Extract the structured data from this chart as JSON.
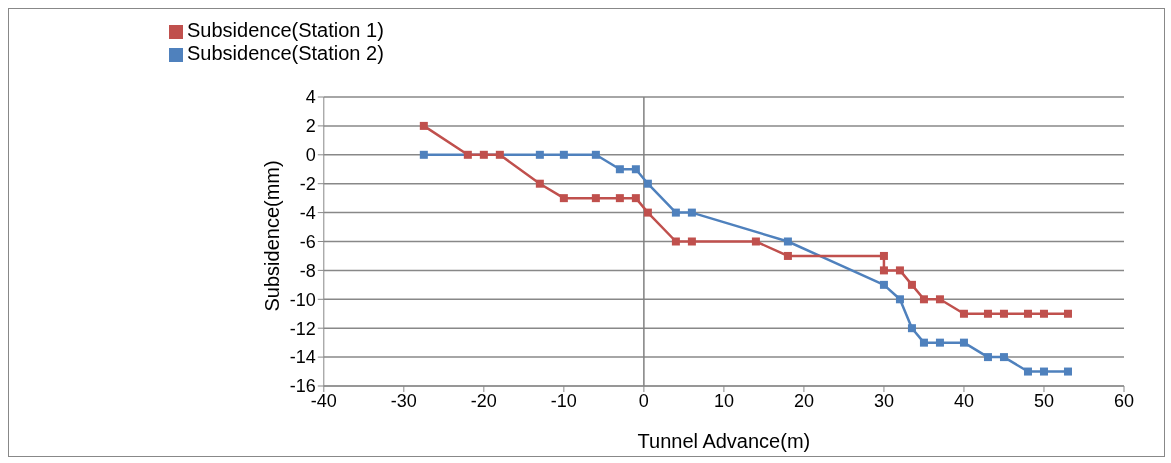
{
  "chart_data": {
    "type": "line",
    "xlabel": "Tunnel Advance(m)",
    "ylabel": "Subsidence(mm)",
    "xlim": [
      -40,
      60
    ],
    "xticks": [
      -40,
      -30,
      -20,
      -10,
      0,
      10,
      20,
      30,
      40,
      50,
      60
    ],
    "ylim": [
      -16,
      4
    ],
    "yticks": [
      -16,
      -14,
      -12,
      -10,
      -8,
      -6,
      -4,
      -2,
      0,
      2,
      4
    ],
    "grid": "y",
    "legend": "top left",
    "marker": "square",
    "line_style": "solid",
    "ref_lines": [
      {
        "axis": "x",
        "value": 0,
        "color": "#808080"
      }
    ],
    "series": [
      {
        "name": "Subsidence(Station 2)",
        "color": "#4f81bd",
        "x": [
          -27.5,
          -13,
          -10,
          -6,
          -3,
          -1,
          0.5,
          4,
          6,
          18,
          30,
          32,
          33.5,
          35,
          37,
          40,
          43,
          45,
          48,
          50,
          53
        ],
        "values": [
          0,
          0,
          0,
          0,
          -1,
          -1,
          -2,
          -4,
          -4,
          -6,
          -9,
          -10,
          -12,
          -13,
          -13,
          -13,
          -14,
          -14,
          -15,
          -15,
          -15
        ]
      },
      {
        "name": "Subsidence(Station 1)",
        "color": "#c0504d",
        "x": [
          -27.5,
          -22,
          -20,
          -18,
          -13,
          -10,
          -6,
          -3,
          -1,
          0.5,
          4,
          6,
          14,
          18,
          30,
          30,
          32,
          33.5,
          35,
          37,
          40,
          43,
          45,
          48,
          50,
          53
        ],
        "values": [
          2,
          0,
          0,
          0,
          -2,
          -3,
          -3,
          -3,
          -3,
          -4,
          -6,
          -6,
          -6,
          -7,
          -7,
          -8,
          -8,
          -9,
          -10,
          -10,
          -11,
          -11,
          -11,
          -11,
          -11,
          -11
        ]
      }
    ]
  }
}
